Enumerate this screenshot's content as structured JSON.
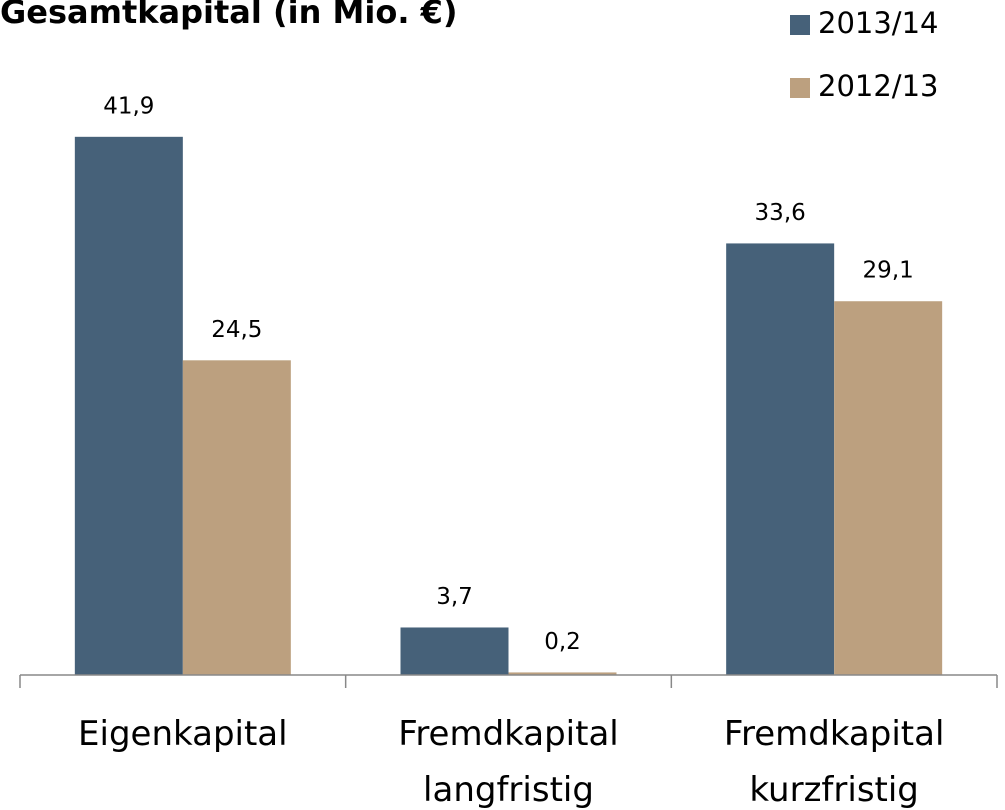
{
  "chart_data": {
    "type": "bar",
    "title": "Gesamtkapital (in Mio. €)",
    "categories": [
      "Eigenkapital",
      "Fremdkapital\nlangfristig",
      "Fremdkapital\nkurzfristig"
    ],
    "series": [
      {
        "name": "2013/14",
        "color": "#466179",
        "values": [
          41.9,
          3.7,
          33.6
        ],
        "value_labels": [
          "41,9",
          "3,7",
          "33,6"
        ]
      },
      {
        "name": "2012/13",
        "color": "#bca07f",
        "values": [
          24.5,
          0.2,
          29.1
        ],
        "value_labels": [
          "24,5",
          "0,2",
          "29,1"
        ]
      }
    ],
    "ylim": [
      0,
      45
    ],
    "legend": "upper right"
  }
}
